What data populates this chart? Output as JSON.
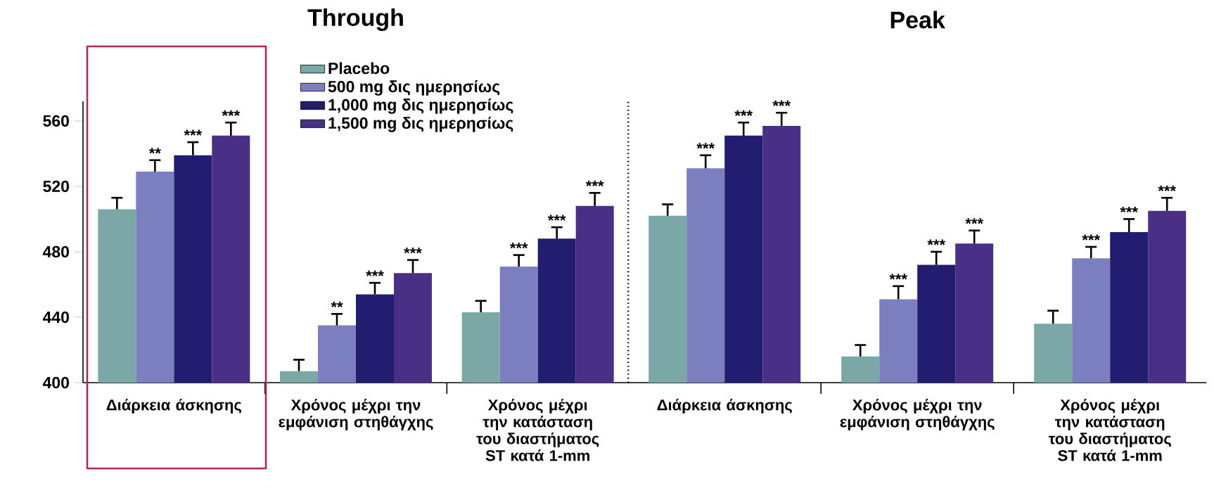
{
  "chart_data": [
    {
      "type": "bar",
      "title": "Through",
      "categories": [
        "Διάρκεια άσκησης",
        "Χρόνος μέχρι την εμφάνιση στηθάγχης",
        "Χρόνος μέχρι την κατάσταση του διαστήματος ST κατά 1-mm"
      ],
      "series": [
        {
          "name": "Placebo",
          "color": "#79a8a6",
          "values": [
            506,
            407,
            443
          ],
          "errors": [
            [
              506,
              513
            ],
            [
              407,
              414
            ],
            [
              443,
              450
            ]
          ]
        },
        {
          "name": "500 mg δις ημερησίως",
          "color": "#7b7fbf",
          "values": [
            529,
            435,
            471
          ],
          "errors": [
            [
              529,
              536
            ],
            [
              435,
              442
            ],
            [
              471,
              478
            ]
          ],
          "value_labels": [
            "**",
            "**",
            "***"
          ]
        },
        {
          "name": "1,000 mg δις ημερησίως",
          "color": "#221d6e",
          "values": [
            539,
            454,
            488
          ],
          "errors": [
            [
              539,
              547
            ],
            [
              454,
              461
            ],
            [
              488,
              495
            ]
          ],
          "value_labels": [
            "***",
            "***",
            "***"
          ]
        },
        {
          "name": "1,500 mg δις ημερησίως",
          "color": "#4a2f86",
          "values": [
            551,
            467,
            508
          ],
          "errors": [
            [
              551,
              559
            ],
            [
              467,
              475
            ],
            [
              508,
              516
            ]
          ],
          "value_labels": [
            "***",
            "***",
            "***"
          ]
        }
      ],
      "ylim": [
        400,
        572
      ],
      "yticks": [
        400,
        440,
        480,
        520,
        560
      ],
      "legend": "top right"
    },
    {
      "type": "bar",
      "title": "Peak",
      "categories": [
        "Διάρκεια άσκησης",
        "Χρόνος μέχρι την εμφάνιση στηθάγχης",
        "Χρόνος μέχρι την κατάσταση του διαστήματος ST κατά 1-mm"
      ],
      "series": [
        {
          "color": "#79a8a6",
          "values": [
            502,
            416,
            436
          ],
          "errors": [
            [
              502,
              509
            ],
            [
              416,
              423
            ],
            [
              436,
              444
            ]
          ]
        },
        {
          "color": "#7b7fbf",
          "values": [
            531,
            451,
            476
          ],
          "errors": [
            [
              531,
              539
            ],
            [
              451,
              459
            ],
            [
              476,
              483
            ]
          ],
          "value_labels": [
            "***",
            "***",
            "***"
          ]
        },
        {
          "color": "#221d6e",
          "values": [
            551,
            472,
            492
          ],
          "errors": [
            [
              551,
              559
            ],
            [
              472,
              480
            ],
            [
              492,
              500
            ]
          ],
          "value_labels": [
            "***",
            "***",
            "***"
          ]
        },
        {
          "color": "#4a2f86",
          "values": [
            557,
            485,
            505
          ],
          "errors": [
            [
              557,
              565
            ],
            [
              485,
              493
            ],
            [
              505,
              513
            ]
          ],
          "value_labels": [
            "***",
            "***",
            "***"
          ]
        }
      ],
      "ylim": [
        400,
        572
      ],
      "yticks": [
        400,
        440,
        480,
        520,
        560
      ],
      "tick_labels": "x"
    }
  ]
}
